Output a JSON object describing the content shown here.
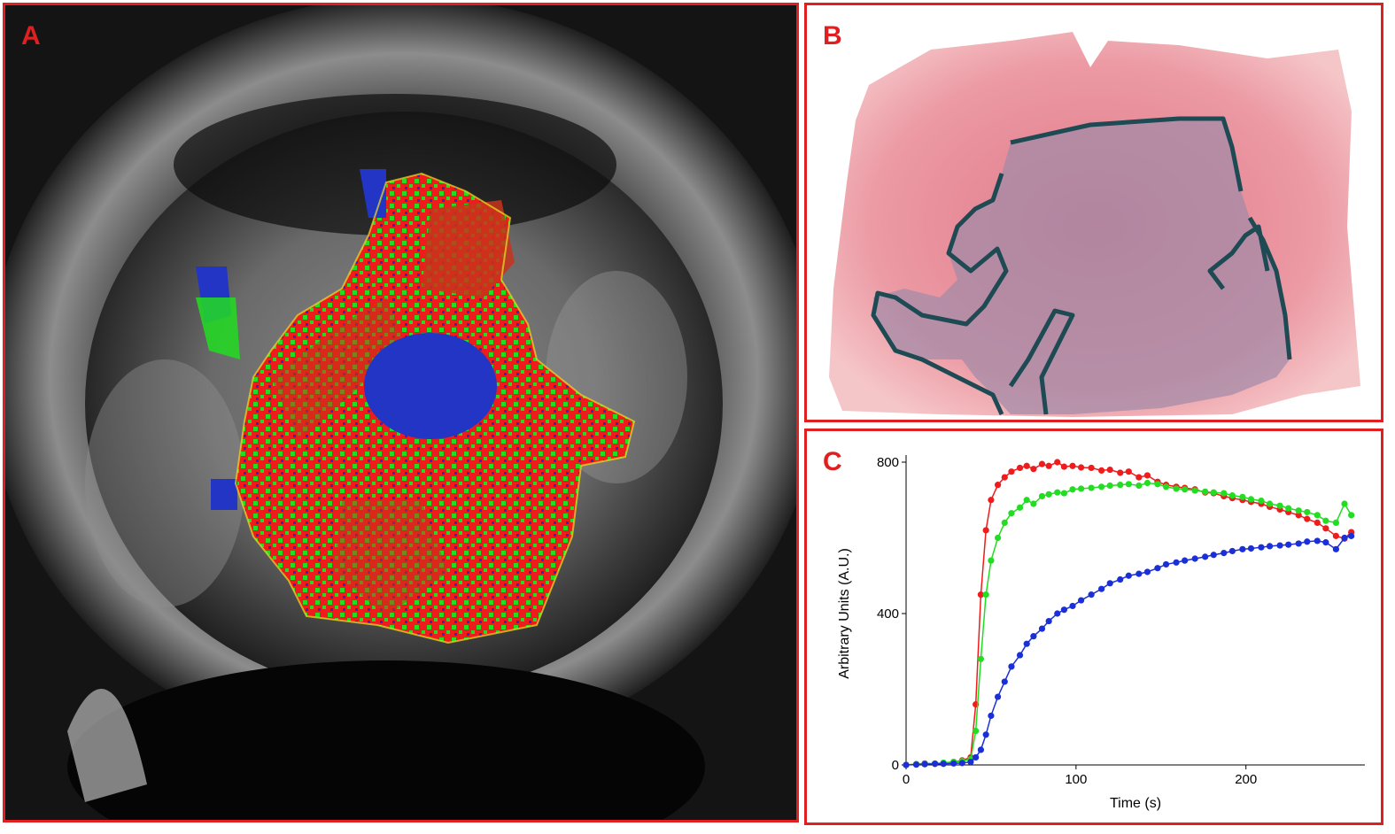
{
  "panels": {
    "a": {
      "letter": "A"
    },
    "b": {
      "letter": "B"
    },
    "c": {
      "letter": "C"
    }
  },
  "colors": {
    "border": "#e02020",
    "red_series": "#ee1c1c",
    "green_series": "#22dd22",
    "blue_series": "#1a2fd8",
    "tumor_outline": "#1e4a54"
  },
  "chart_data": {
    "type": "line",
    "title": "",
    "xlabel": "Time (s)",
    "ylabel": "Arbitrary Units (A.U.)",
    "xlim": [
      0,
      270
    ],
    "ylim": [
      0,
      800
    ],
    "xticks": [
      0,
      100,
      200
    ],
    "yticks": [
      0,
      400,
      800
    ],
    "grid": false,
    "legend": "none",
    "series": [
      {
        "color": "red",
        "x": [
          0,
          6,
          11,
          17,
          22,
          28,
          33,
          38,
          41,
          44,
          47,
          50,
          54,
          58,
          62,
          67,
          71,
          75,
          80,
          84,
          89,
          93,
          98,
          103,
          109,
          115,
          120,
          126,
          131,
          137,
          142,
          148,
          153,
          159,
          164,
          170,
          176,
          181,
          187,
          192,
          198,
          203,
          209,
          214,
          220,
          225,
          231,
          236,
          242,
          247,
          253,
          258,
          262
        ],
        "y": [
          0,
          2,
          4,
          3,
          5,
          8,
          12,
          20,
          160,
          450,
          620,
          700,
          740,
          760,
          775,
          785,
          790,
          782,
          795,
          790,
          800,
          788,
          790,
          786,
          785,
          778,
          780,
          772,
          775,
          760,
          765,
          748,
          740,
          735,
          732,
          728,
          720,
          718,
          710,
          705,
          700,
          695,
          690,
          682,
          675,
          668,
          660,
          650,
          640,
          625,
          605,
          598,
          615
        ]
      },
      {
        "color": "green",
        "x": [
          0,
          6,
          11,
          17,
          22,
          28,
          33,
          38,
          41,
          44,
          47,
          50,
          54,
          58,
          62,
          67,
          71,
          75,
          80,
          84,
          89,
          93,
          98,
          103,
          109,
          115,
          120,
          126,
          131,
          137,
          142,
          148,
          153,
          159,
          164,
          170,
          176,
          181,
          187,
          192,
          198,
          203,
          209,
          214,
          220,
          225,
          231,
          236,
          242,
          247,
          253,
          258,
          262
        ],
        "y": [
          0,
          2,
          3,
          4,
          6,
          8,
          10,
          15,
          90,
          280,
          450,
          540,
          600,
          640,
          665,
          680,
          700,
          690,
          710,
          715,
          720,
          718,
          728,
          730,
          732,
          735,
          738,
          740,
          742,
          738,
          745,
          742,
          735,
          730,
          728,
          725,
          722,
          720,
          718,
          712,
          708,
          702,
          698,
          690,
          685,
          678,
          672,
          668,
          660,
          645,
          640,
          690,
          660
        ]
      },
      {
        "color": "blue",
        "x": [
          0,
          6,
          11,
          17,
          22,
          28,
          33,
          38,
          41,
          44,
          47,
          50,
          54,
          58,
          62,
          67,
          71,
          75,
          80,
          84,
          89,
          93,
          98,
          103,
          109,
          115,
          120,
          126,
          131,
          137,
          142,
          148,
          153,
          159,
          164,
          170,
          176,
          181,
          187,
          192,
          198,
          203,
          209,
          214,
          220,
          225,
          231,
          236,
          242,
          247,
          253,
          258,
          262
        ],
        "y": [
          0,
          1,
          2,
          3,
          3,
          4,
          5,
          8,
          20,
          40,
          80,
          130,
          180,
          220,
          260,
          290,
          320,
          340,
          360,
          380,
          400,
          410,
          420,
          435,
          450,
          465,
          480,
          490,
          500,
          505,
          510,
          520,
          530,
          535,
          540,
          545,
          550,
          555,
          560,
          565,
          570,
          572,
          575,
          578,
          580,
          582,
          585,
          590,
          592,
          588,
          570,
          600,
          605
        ]
      }
    ]
  }
}
